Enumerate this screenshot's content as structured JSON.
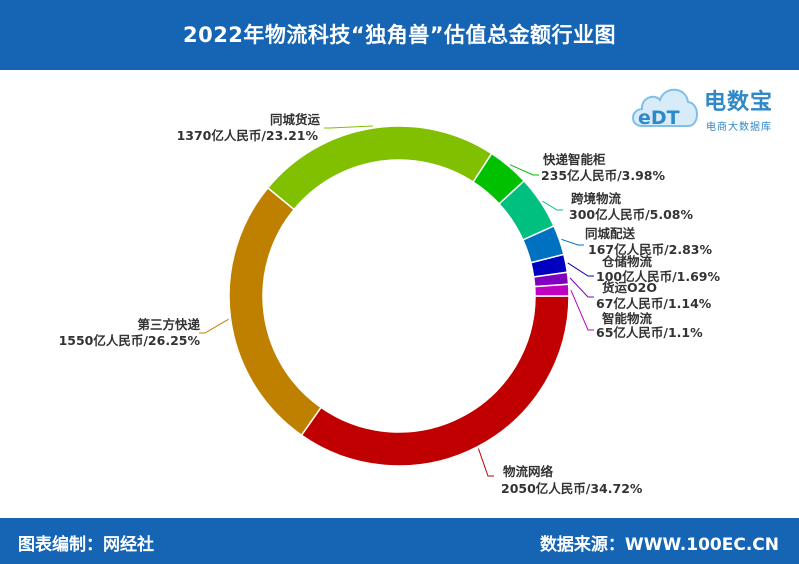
{
  "header": {
    "title": "2022年物流科技“独角兽”估值总金额行业图"
  },
  "footer": {
    "left": "图表编制：网经社",
    "right": "数据来源：WWW.100EC.CN"
  },
  "logo": {
    "mark": "eDT",
    "name": "电数宝",
    "sub": "电商大数据库"
  },
  "colors": {
    "header_bg": "#1565b4"
  },
  "chart_data": {
    "type": "donut",
    "title": "2022年物流科技“独角兽”估值总金额行业图",
    "unit": "亿人民币",
    "slices": [
      {
        "name": "物流网络",
        "value": 2050,
        "percent": "34.72%",
        "label": "2050亿人民币/34.72%",
        "color": "#c00000"
      },
      {
        "name": "第三方快递",
        "value": 1550,
        "percent": "26.25%",
        "label": "1550亿人民币/26.25%",
        "color": "#bf8000"
      },
      {
        "name": "同城货运",
        "value": 1370,
        "percent": "23.21%",
        "label": "1370亿人民币/23.21%",
        "color": "#80c000"
      },
      {
        "name": "快递智能柜",
        "value": 235,
        "percent": "3.98%",
        "label": "235亿人民币/3.98%",
        "color": "#00c000"
      },
      {
        "name": "跨境物流",
        "value": 300,
        "percent": "5.08%",
        "label": "300亿人民币/5.08%",
        "color": "#00c080"
      },
      {
        "name": "同城配送",
        "value": 167,
        "percent": "2.83%",
        "label": "167亿人民币/2.83%",
        "color": "#0070c0"
      },
      {
        "name": "仓储物流",
        "value": 100,
        "percent": "1.69%",
        "label": "100亿人民币/1.69%",
        "color": "#0000c0"
      },
      {
        "name": "货运O2O",
        "value": 67,
        "percent": "1.14%",
        "label": "67亿人民币/1.14%",
        "color": "#8000c0"
      },
      {
        "name": "智能物流",
        "value": 65,
        "percent": "1.1%",
        "label": "65亿人民币/1.1%",
        "color": "#c000c0"
      }
    ]
  }
}
